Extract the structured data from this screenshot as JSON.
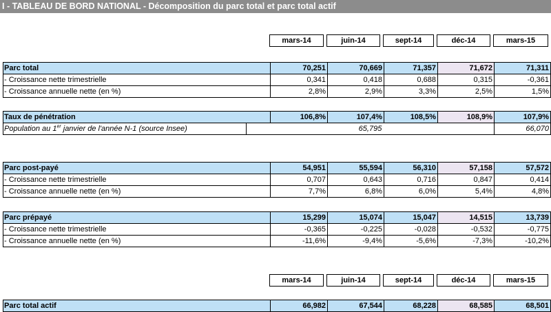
{
  "title": "I - TABLEAU DE BORD NATIONAL - Décomposition du parc total et parc total actif",
  "periods": [
    "mars-14",
    "juin-14",
    "sept-14",
    "déc-14",
    "mars-15"
  ],
  "parc_total": {
    "label": "Parc total",
    "values": [
      "70,251",
      "70,669",
      "71,357",
      "71,672",
      "71,311"
    ],
    "croissance_trim_label": "- Croissance nette trimestrielle",
    "croissance_trim": [
      "0,341",
      "0,418",
      "0,688",
      "0,315",
      "-0,361"
    ],
    "croissance_ann_label": "- Croissance annuelle nette (en %)",
    "croissance_ann": [
      "2,8%",
      "2,9%",
      "3,3%",
      "2,5%",
      "1,5%"
    ]
  },
  "penetration": {
    "label": "Taux de pénétration",
    "values": [
      "106,8%",
      "107,4%",
      "108,5%",
      "108,9%",
      "107,9%"
    ],
    "pop_label_a": "Population au 1",
    "pop_label_sup": "er",
    "pop_label_b": " janvier de l'année N-1 (source Insee)",
    "pop_value_1": "65,795",
    "pop_value_2": "66,070"
  },
  "post_paye": {
    "label": "Parc post-payé",
    "values": [
      "54,951",
      "55,594",
      "56,310",
      "57,158",
      "57,572"
    ],
    "croissance_trim_label": "- Croissance nette trimestrielle",
    "croissance_trim": [
      "0,707",
      "0,643",
      "0,716",
      "0,847",
      "0,414"
    ],
    "croissance_ann_label": "- Croissance annuelle nette (en %)",
    "croissance_ann": [
      "7,7%",
      "6,8%",
      "6,0%",
      "5,4%",
      "4,8%"
    ]
  },
  "prepaye": {
    "label": "Parc prépayé",
    "values": [
      "15,299",
      "15,074",
      "15,047",
      "14,515",
      "13,739"
    ],
    "croissance_trim_label": "- Croissance nette trimestrielle",
    "croissance_trim": [
      "-0,365",
      "-0,225",
      "-0,028",
      "-0,532",
      "-0,775"
    ],
    "croissance_ann_label": "- Croissance annuelle nette (en %)",
    "croissance_ann": [
      "-11,6%",
      "-9,4%",
      "-5,6%",
      "-7,3%",
      "-10,2%"
    ]
  },
  "parc_actif": {
    "label": "Parc total actif",
    "values": [
      "66,982",
      "67,544",
      "68,228",
      "68,585",
      "68,501"
    ]
  }
}
